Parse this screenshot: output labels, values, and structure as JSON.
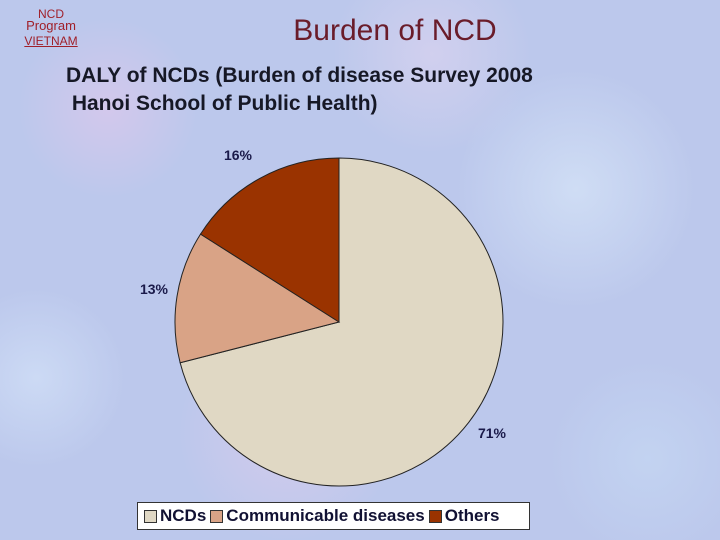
{
  "logo": {
    "line1": "NCD",
    "line2": "Program",
    "line3": "VIETNAM"
  },
  "header": {
    "title": "Burden of NCD",
    "subtitle_line1": "DALY of NCDs (Burden of disease Survey 2008",
    "subtitle_line2": " Hanoi School of Public Health)"
  },
  "chart_data": {
    "type": "pie",
    "slices": [
      {
        "label": "NCDs",
        "value": 71,
        "display": "71%",
        "color": "#e0d8c4"
      },
      {
        "label": "Communicable diseases",
        "value": 13,
        "display": "13%",
        "color": "#d9a386"
      },
      {
        "label": "Others",
        "value": 16,
        "display": "16%",
        "color": "#9a3300"
      }
    ],
    "start_direction": "top, clockwise",
    "legend_position": "bottom"
  }
}
